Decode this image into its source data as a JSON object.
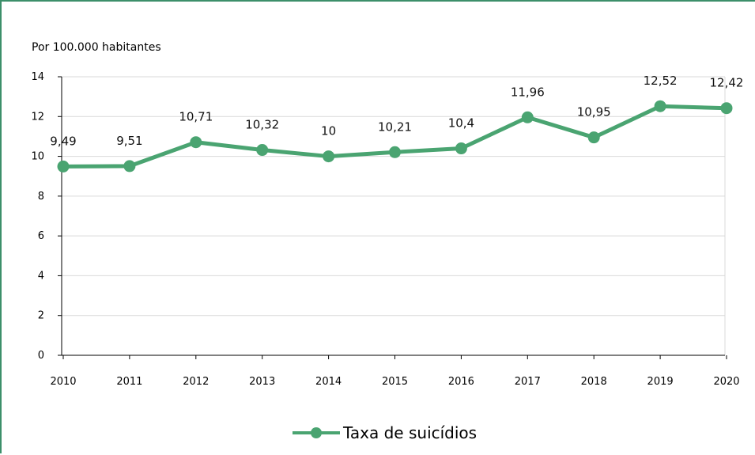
{
  "chart_data": {
    "type": "line",
    "ylabel": "Por 100.000 habitantes",
    "ylim": [
      0,
      14
    ],
    "yticks": [
      0,
      2,
      4,
      6,
      8,
      10,
      12,
      14
    ],
    "grid": true,
    "legend_position": "bottom-center",
    "categories": [
      "2010",
      "2011",
      "2012",
      "2013",
      "2014",
      "2015",
      "2016",
      "2017",
      "2018",
      "2019",
      "2020"
    ],
    "series": [
      {
        "name": "Taxa de suicídios",
        "color": "#4aa471",
        "values": [
          9.49,
          9.51,
          10.71,
          10.32,
          10,
          10.21,
          10.4,
          11.96,
          10.95,
          12.52,
          12.42
        ],
        "labels": [
          "9,49",
          "9,51",
          "10,71",
          "10,32",
          "10",
          "10,21",
          "10,4",
          "11,96",
          "10,95",
          "12,52",
          "12,42"
        ]
      }
    ]
  }
}
